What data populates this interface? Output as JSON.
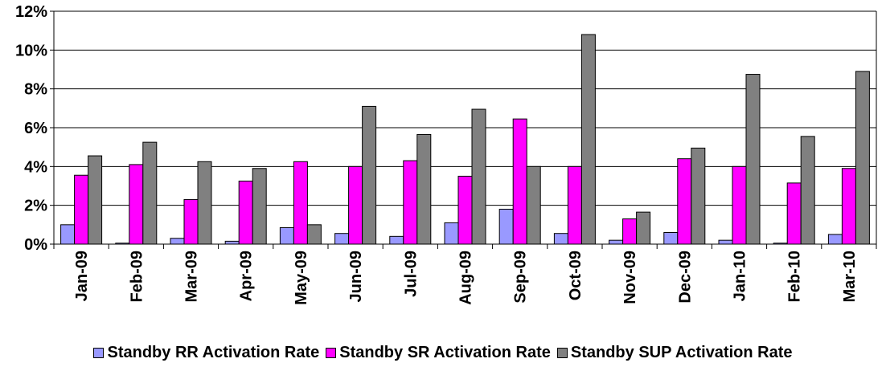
{
  "chart_data": {
    "type": "bar",
    "categories": [
      "Jan-09",
      "Feb-09",
      "Mar-09",
      "Apr-09",
      "May-09",
      "Jun-09",
      "Jul-09",
      "Aug-09",
      "Sep-09",
      "Oct-09",
      "Nov-09",
      "Dec-09",
      "Jan-10",
      "Feb-10",
      "Mar-10"
    ],
    "series": [
      {
        "name": "Standby RR Activation Rate",
        "color": "#9999ff",
        "values": [
          1.0,
          0.05,
          0.3,
          0.15,
          0.85,
          0.55,
          0.4,
          1.1,
          1.8,
          0.55,
          0.2,
          0.6,
          0.2,
          0.05,
          0.5
        ]
      },
      {
        "name": "Standby SR Activation Rate",
        "color": "#ff00ff",
        "values": [
          3.55,
          4.1,
          2.3,
          3.25,
          4.25,
          4.0,
          4.3,
          3.5,
          6.45,
          4.0,
          1.3,
          4.4,
          4.0,
          3.15,
          3.9
        ]
      },
      {
        "name": "Standby SUP Activation Rate",
        "color": "#808080",
        "values": [
          4.55,
          5.25,
          4.25,
          3.9,
          1.0,
          7.1,
          5.65,
          6.95,
          4.0,
          10.8,
          1.65,
          4.95,
          8.75,
          5.55,
          8.9
        ]
      }
    ],
    "yticks": [
      "0%",
      "2%",
      "4%",
      "6%",
      "8%",
      "10%",
      "12%"
    ],
    "ylim": [
      0,
      12
    ],
    "grid": true,
    "legend_position": "bottom"
  }
}
